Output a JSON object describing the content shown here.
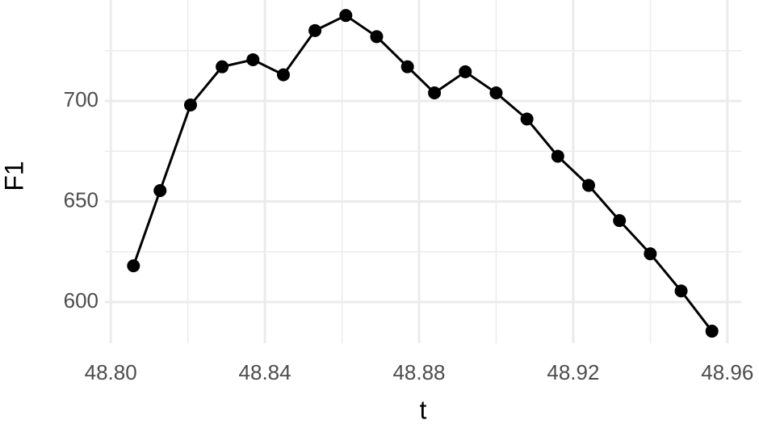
{
  "chart_data": {
    "type": "line",
    "x_label": "t",
    "y_label": "F1",
    "x": [
      48.8059,
      48.8128,
      48.8207,
      48.8289,
      48.8369,
      48.8448,
      48.853,
      48.861,
      48.869,
      48.877,
      48.884,
      48.892,
      48.9,
      48.908,
      48.916,
      48.924,
      48.932,
      48.94,
      48.948,
      48.956
    ],
    "series": [
      {
        "name": "F1",
        "color": "#000000",
        "values": [
          618,
          655.4,
          698,
          717,
          720.5,
          713,
          735,
          742.5,
          732,
          717,
          704,
          714.5,
          704,
          691,
          672.5,
          658,
          640.5,
          624,
          605.5,
          585.5
        ]
      }
    ],
    "xlim": [
      48.7985,
      48.9636
    ],
    "ylim": [
      579.5,
      750.2
    ],
    "xticks": [
      {
        "value": 48.8,
        "label": "48.80"
      },
      {
        "value": 48.84,
        "label": "48.84"
      },
      {
        "value": 48.88,
        "label": "48.88"
      },
      {
        "value": 48.92,
        "label": "48.92"
      },
      {
        "value": 48.96,
        "label": "48.96"
      }
    ],
    "yticks": [
      600,
      650,
      700
    ],
    "minor_xticks": [
      48.82,
      48.86,
      48.9,
      48.94
    ],
    "minor_yticks": [
      625,
      675,
      725
    ],
    "grid": true,
    "markers": true
  }
}
